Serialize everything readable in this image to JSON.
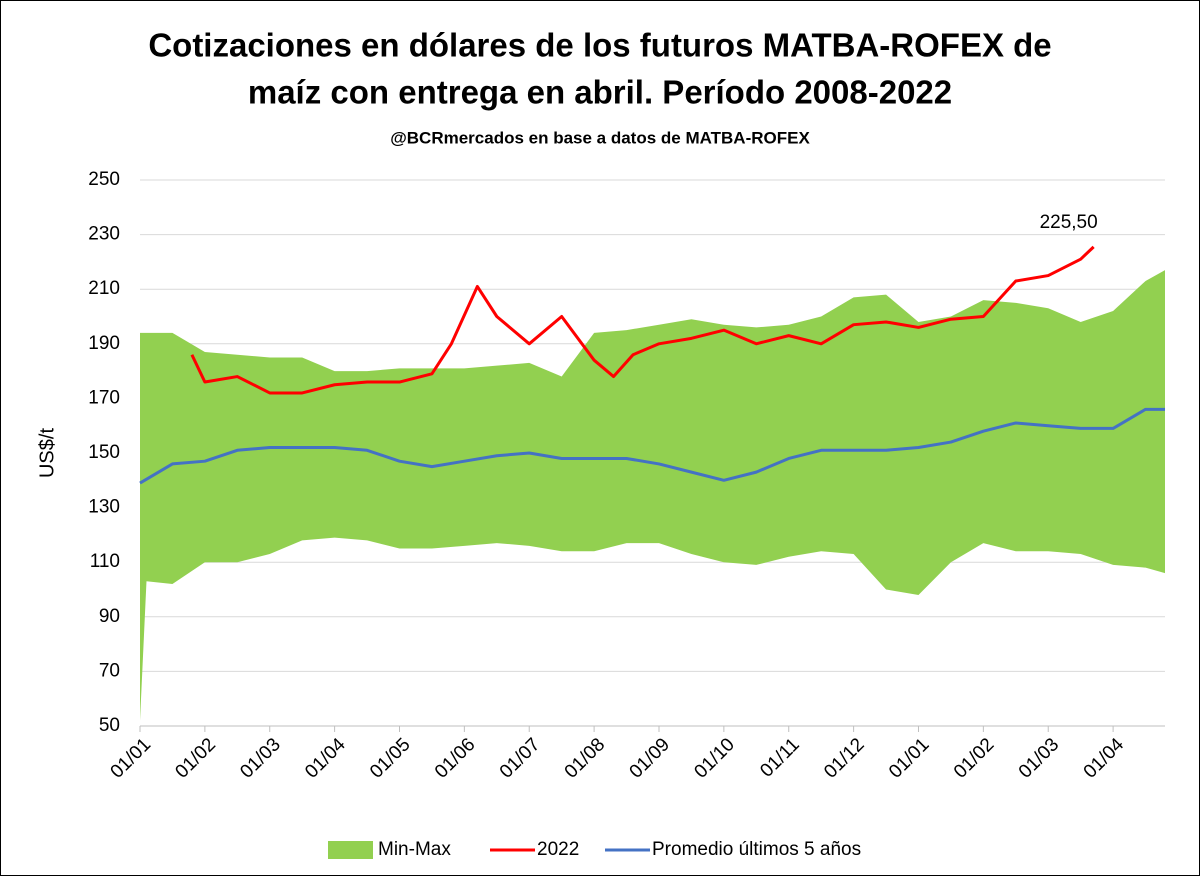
{
  "chart_data": {
    "type": "line",
    "title": [
      "Cotizaciones en dólares de los futuros MATBA-ROFEX de",
      "maíz con entrega en abril. Período 2008-2022"
    ],
    "subtitle": "@BCRmercados en base a datos de MATBA-ROFEX",
    "y_label": "US$/t",
    "ylim": [
      50,
      250
    ],
    "yticks": [
      50,
      70,
      90,
      110,
      130,
      150,
      170,
      190,
      210,
      230,
      250
    ],
    "xlim": [
      0,
      15.8
    ],
    "xticks": [
      {
        "value": 0,
        "label": "01/01"
      },
      {
        "value": 1,
        "label": "01/02"
      },
      {
        "value": 2,
        "label": "01/03"
      },
      {
        "value": 3,
        "label": "01/04"
      },
      {
        "value": 4,
        "label": "01/05"
      },
      {
        "value": 5,
        "label": "01/06"
      },
      {
        "value": 6,
        "label": "01/07"
      },
      {
        "value": 7,
        "label": "01/08"
      },
      {
        "value": 8,
        "label": "01/09"
      },
      {
        "value": 9,
        "label": "01/10"
      },
      {
        "value": 10,
        "label": "01/11"
      },
      {
        "value": 11,
        "label": "01/12"
      },
      {
        "value": 12,
        "label": "01/01"
      },
      {
        "value": 13,
        "label": "01/02"
      },
      {
        "value": 14,
        "label": "01/03"
      },
      {
        "value": 15,
        "label": "01/04"
      }
    ],
    "grid": true,
    "legend": "bottom",
    "series": [
      {
        "name": "Min-Max",
        "type": "area",
        "color": "#92d050",
        "x": [
          0,
          0.1,
          0.5,
          1,
          1.5,
          2,
          2.5,
          3,
          3.5,
          4,
          4.5,
          5,
          5.5,
          6,
          6.5,
          7,
          7.5,
          8,
          8.5,
          9,
          9.5,
          10,
          10.5,
          11,
          11.5,
          12,
          12.5,
          13,
          13.5,
          14,
          14.5,
          15,
          15.5,
          15.8
        ],
        "upper": [
          194,
          194,
          194,
          187,
          186,
          185,
          185,
          180,
          180,
          181,
          181,
          181,
          182,
          183,
          178,
          194,
          195,
          197,
          199,
          197,
          196,
          197,
          200,
          207,
          208,
          198,
          200,
          206,
          205,
          203,
          198,
          202,
          213,
          217
        ],
        "lower": [
          52,
          103,
          102,
          110,
          110,
          113,
          118,
          119,
          118,
          115,
          115,
          116,
          117,
          116,
          114,
          114,
          117,
          117,
          113,
          110,
          109,
          112,
          114,
          113,
          100,
          98,
          110,
          117,
          114,
          114,
          113,
          109,
          108,
          106
        ]
      },
      {
        "name": "2022",
        "type": "line",
        "color": "#ff0000",
        "x": [
          0.8,
          1,
          1.5,
          2,
          2.5,
          3,
          3.5,
          4,
          4.5,
          4.8,
          5.2,
          5.5,
          6,
          6.5,
          7,
          7.3,
          7.6,
          8,
          8.5,
          9,
          9.5,
          10,
          10.5,
          11,
          11.5,
          12,
          12.5,
          13,
          13.5,
          14,
          14.5,
          14.7
        ],
        "values": [
          186,
          176,
          178,
          172,
          172,
          175,
          176,
          176,
          179,
          190,
          211,
          200,
          190,
          200,
          184,
          178,
          186,
          190,
          192,
          195,
          190,
          193,
          190,
          197,
          198,
          196,
          199,
          200,
          213,
          215,
          221,
          225.5
        ],
        "value_labels": [
          null,
          null,
          null,
          null,
          null,
          null,
          null,
          null,
          null,
          null,
          null,
          null,
          null,
          null,
          null,
          null,
          null,
          null,
          null,
          null,
          null,
          null,
          null,
          null,
          null,
          null,
          null,
          null,
          null,
          null,
          null,
          "225,50"
        ]
      },
      {
        "name": "Promedio últimos 5 años",
        "type": "line",
        "color": "#4472c4",
        "x": [
          0,
          0.5,
          1,
          1.5,
          2,
          2.5,
          3,
          3.5,
          4,
          4.5,
          5,
          5.5,
          6,
          6.5,
          7,
          7.5,
          8,
          8.5,
          9,
          9.5,
          10,
          10.5,
          11,
          11.5,
          12,
          12.5,
          13,
          13.5,
          14,
          14.5,
          15,
          15.5,
          15.8
        ],
        "values": [
          139,
          146,
          147,
          151,
          152,
          152,
          152,
          151,
          147,
          145,
          147,
          149,
          150,
          148,
          148,
          148,
          146,
          143,
          140,
          143,
          148,
          151,
          151,
          151,
          152,
          154,
          158,
          161,
          160,
          159,
          159,
          166,
          166
        ]
      }
    ]
  }
}
